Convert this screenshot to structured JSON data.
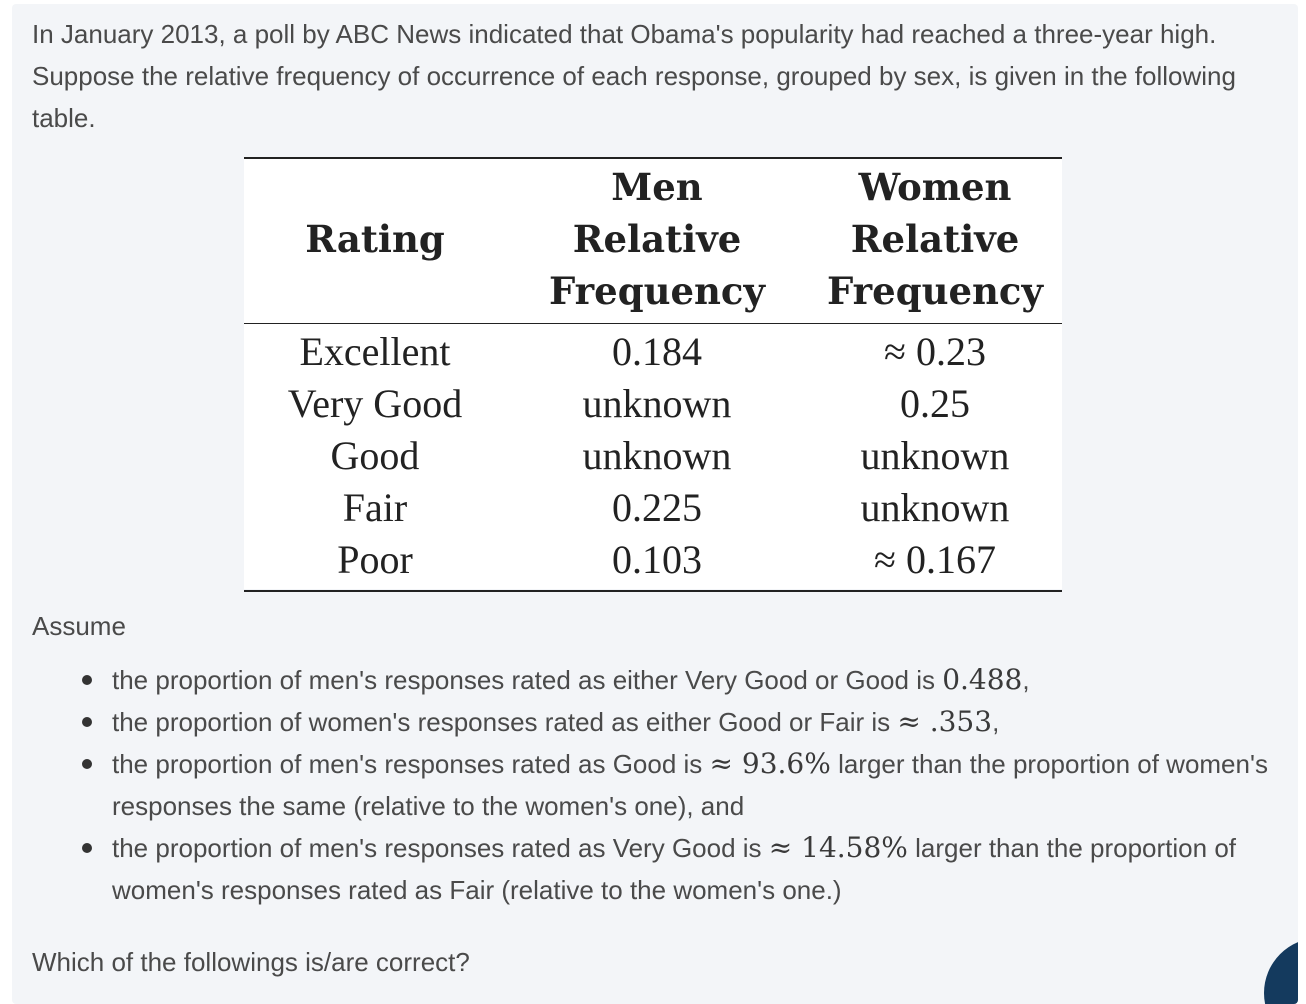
{
  "intro": "In January 2013, a poll by ABC News indicated that Obama's popularity had reached a three-year high. Suppose the relative frequency of occurrence of each response, grouped by sex, is given in the following table.",
  "table": {
    "headers": {
      "rating": "Rating",
      "men": [
        "Men",
        "Relative",
        "Frequency"
      ],
      "women": [
        "Women",
        "Relative",
        "Frequency"
      ]
    },
    "rows": [
      {
        "rating": "Excellent",
        "men": "0.184",
        "women": "≈ 0.23"
      },
      {
        "rating": "Very Good",
        "men": "unknown",
        "women": "0.25"
      },
      {
        "rating": "Good",
        "men": "unknown",
        "women": "unknown"
      },
      {
        "rating": "Fair",
        "men": "0.225",
        "women": "unknown"
      },
      {
        "rating": "Poor",
        "men": "0.103",
        "women": "≈ 0.167"
      }
    ]
  },
  "assume_label": "Assume",
  "conditions": [
    {
      "before": "the proportion of men's responses rated as either Very Good or Good is ",
      "math": "0.488",
      "after": ","
    },
    {
      "before": "the proportion of women's responses rated as either Good or Fair is ",
      "math": "≈ .353",
      "after": ","
    },
    {
      "before": "the proportion of men's responses rated as Good is ",
      "math": "≈ 93.6%",
      "after": " larger than the proportion of women's responses the same (relative to the women's one), and"
    },
    {
      "before": "the proportion of men's responses rated as Very Good is ",
      "math": "≈ 14.58%",
      "after": " larger than the proportion of women's responses rated as Fair (relative to the women's one.)"
    }
  ],
  "question": "Which of the followings is/are correct?"
}
